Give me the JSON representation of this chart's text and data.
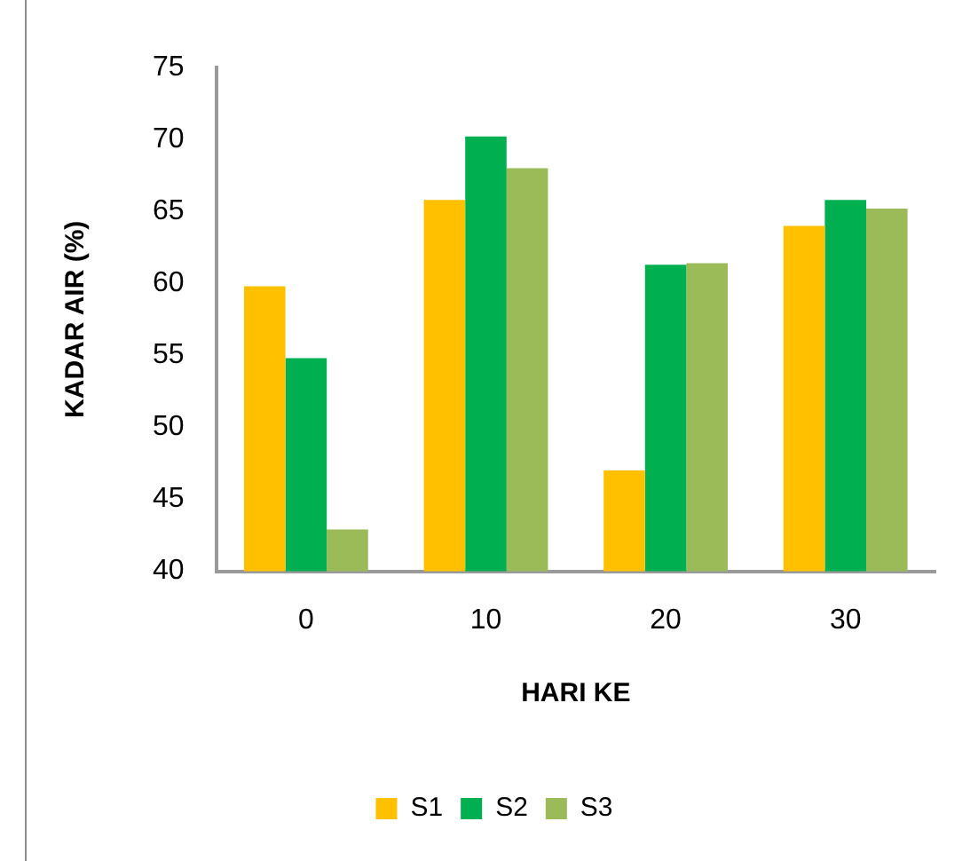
{
  "chart_data": {
    "type": "bar",
    "xlabel": "HARI KE",
    "ylabel": "KADAR AIR (%)",
    "categories": [
      "0",
      "10",
      "20",
      "30"
    ],
    "series": [
      {
        "name": "S1",
        "color": "#ffc000",
        "values": [
          59.8,
          65.8,
          47.0,
          64.0
        ]
      },
      {
        "name": "S2",
        "color": "#00b050",
        "values": [
          54.8,
          70.2,
          61.3,
          65.8
        ]
      },
      {
        "name": "S3",
        "color": "#9bbb59",
        "values": [
          42.9,
          68.0,
          61.4,
          65.2
        ]
      }
    ],
    "ylim": [
      40,
      75
    ],
    "yticks": [
      40,
      45,
      50,
      55,
      60,
      65,
      70,
      75
    ],
    "legend": "bottom"
  }
}
